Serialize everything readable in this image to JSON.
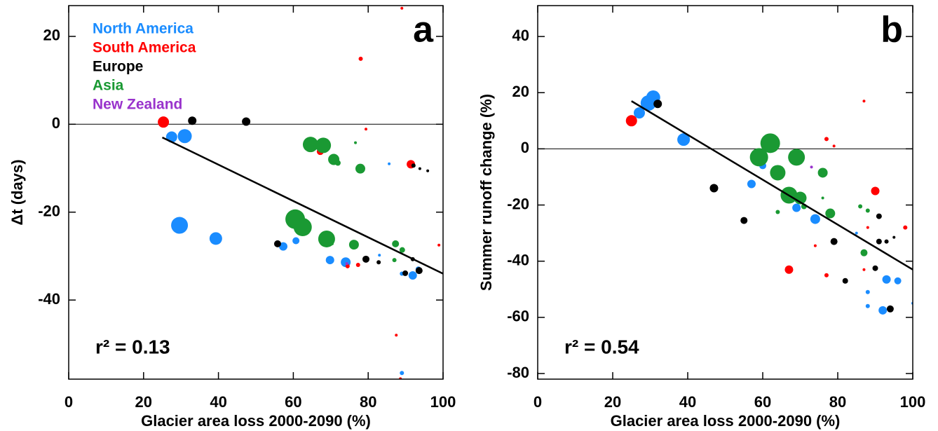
{
  "chart_data": [
    {
      "type": "scatter",
      "panel_label": "a",
      "annotation": "r² = 0.13",
      "xlabel": "Glacier area loss 2000-2090 (%)",
      "ylabel": "Δt (days)",
      "xlim": [
        0,
        100
      ],
      "ylim": [
        -58,
        27
      ],
      "xticks": [
        0,
        20,
        40,
        60,
        80,
        100
      ],
      "yticks": [
        -40,
        -20,
        0,
        20
      ],
      "legend": "upper left",
      "hline": 0,
      "fit": {
        "x": [
          25,
          100
        ],
        "y": [
          -3,
          -34
        ]
      },
      "series": [
        {
          "name": "North America",
          "color": "#1a8cff",
          "x": [
            27.5,
            31,
            29.6,
            39.3,
            57.3,
            60.7,
            69.8,
            74,
            83,
            85.6,
            89,
            91.9,
            93.4,
            89
          ],
          "y": [
            -2.9,
            -2.7,
            -23,
            -26,
            -27.8,
            -26.5,
            -30.9,
            -31.4,
            -29.8,
            -9,
            -34,
            -34.4,
            -33,
            -56.6
          ],
          "sizes": [
            8,
            10,
            12,
            9,
            6,
            5,
            6,
            7,
            2,
            2,
            3,
            6,
            4,
            3
          ]
        },
        {
          "name": "South America",
          "color": "#ff0000",
          "x": [
            25.3,
            67.2,
            78,
            79.4,
            89,
            91.4,
            98.9,
            74.5,
            77.3,
            87.5,
            88.6
          ],
          "y": [
            0.5,
            -6.2,
            14.9,
            -1.1,
            26.4,
            -9.1,
            -27.5,
            -32.3,
            -32,
            -48,
            -57.9
          ],
          "sizes": [
            8,
            5,
            3,
            2,
            2,
            6,
            2,
            3,
            3,
            2,
            2
          ]
        },
        {
          "name": "Europe",
          "color": "#000000",
          "x": [
            33,
            47.4,
            55.8,
            79.4,
            82.8,
            89.9,
            91.9,
            93.6,
            92.1,
            93.8,
            95.9
          ],
          "y": [
            0.8,
            0.6,
            -27.2,
            -30.7,
            -31.4,
            -33.9,
            -30.7,
            -33.3,
            -9.4,
            -10.1,
            -10.6
          ],
          "sizes": [
            6,
            6,
            5,
            5,
            3,
            4,
            3,
            5,
            3,
            2,
            2
          ]
        },
        {
          "name": "Asia",
          "color": "#1a9933",
          "x": [
            64.6,
            68,
            70.8,
            71.9,
            77.9,
            76.6,
            60.5,
            62.5,
            68.9,
            76.2,
            87.3,
            89.1,
            87,
            70.4
          ],
          "y": [
            -4.6,
            -4.8,
            -8,
            -8.8,
            -10.1,
            -4.2,
            -21.6,
            -23.4,
            -26.1,
            -27.4,
            -27.2,
            -28.6,
            -30.9,
            -27.2
          ],
          "sizes": [
            11,
            11,
            8,
            4,
            7,
            2,
            14,
            13,
            12,
            7,
            5,
            4,
            3,
            2
          ]
        },
        {
          "name": "New Zealand",
          "color": "#9933cc",
          "x": [
            74.3
          ],
          "y": [
            -31.7
          ],
          "sizes": [
            2
          ]
        }
      ]
    },
    {
      "type": "scatter",
      "panel_label": "b",
      "annotation": "r² = 0.54",
      "xlabel": "Glacier area loss 2000-2090 (%)",
      "ylabel": "Summer runoff change (%)",
      "xlim": [
        0,
        100
      ],
      "ylim": [
        -82,
        51
      ],
      "xticks": [
        0,
        20,
        40,
        60,
        80,
        100
      ],
      "yticks": [
        -80,
        -60,
        -40,
        -20,
        0,
        20,
        40
      ],
      "hline": 0,
      "fit": {
        "x": [
          25,
          100
        ],
        "y": [
          17,
          -43
        ]
      },
      "series": [
        {
          "color": "#1a8cff",
          "x": [
            27.1,
            29.5,
            30.8,
            38.9,
            57,
            60,
            69,
            74,
            92,
            93,
            96,
            88,
            88,
            85,
            100
          ],
          "y": [
            12.8,
            16.3,
            18.3,
            3.3,
            -12.5,
            -6,
            -21,
            -25,
            -57.5,
            -46.5,
            -47,
            -51,
            -56,
            -30,
            -55
          ],
          "sizes": [
            8,
            11,
            10,
            9,
            6,
            5,
            6,
            7,
            6,
            6,
            5,
            3,
            3,
            2,
            2
          ]
        },
        {
          "color": "#ff0000",
          "x": [
            25,
            67,
            90,
            77,
            79,
            87,
            77,
            74,
            87,
            88,
            98
          ],
          "y": [
            10,
            -43,
            -15,
            3.5,
            1,
            17,
            -45,
            -34.5,
            -43,
            -28,
            -28
          ],
          "sizes": [
            8,
            6,
            6,
            3,
            2,
            2,
            3,
            2,
            2,
            2,
            3
          ]
        },
        {
          "color": "#000000",
          "x": [
            32,
            47,
            55,
            79,
            82,
            91,
            93,
            91,
            90,
            94,
            95
          ],
          "y": [
            16,
            -14,
            -25.5,
            -33,
            -47,
            -33,
            -33,
            -24,
            -42.5,
            -57,
            -31.5
          ],
          "sizes": [
            6,
            6,
            5,
            5,
            4,
            4,
            3,
            4,
            4,
            5,
            2
          ]
        },
        {
          "color": "#1a9933",
          "x": [
            59,
            62,
            64,
            69,
            67,
            70,
            71,
            76,
            78,
            86,
            88,
            87,
            64,
            76
          ],
          "y": [
            -3,
            2,
            -8.5,
            -3,
            -16.5,
            -17.5,
            -20.5,
            -8.5,
            -23,
            -20.5,
            -22,
            -37,
            -22.5,
            -17.5
          ],
          "sizes": [
            13,
            14,
            11,
            12,
            12,
            9,
            4,
            7,
            7,
            3,
            3,
            5,
            3,
            2
          ]
        },
        {
          "color": "#9933cc",
          "x": [
            73
          ],
          "y": [
            -6.5
          ],
          "sizes": [
            2
          ]
        }
      ]
    }
  ]
}
